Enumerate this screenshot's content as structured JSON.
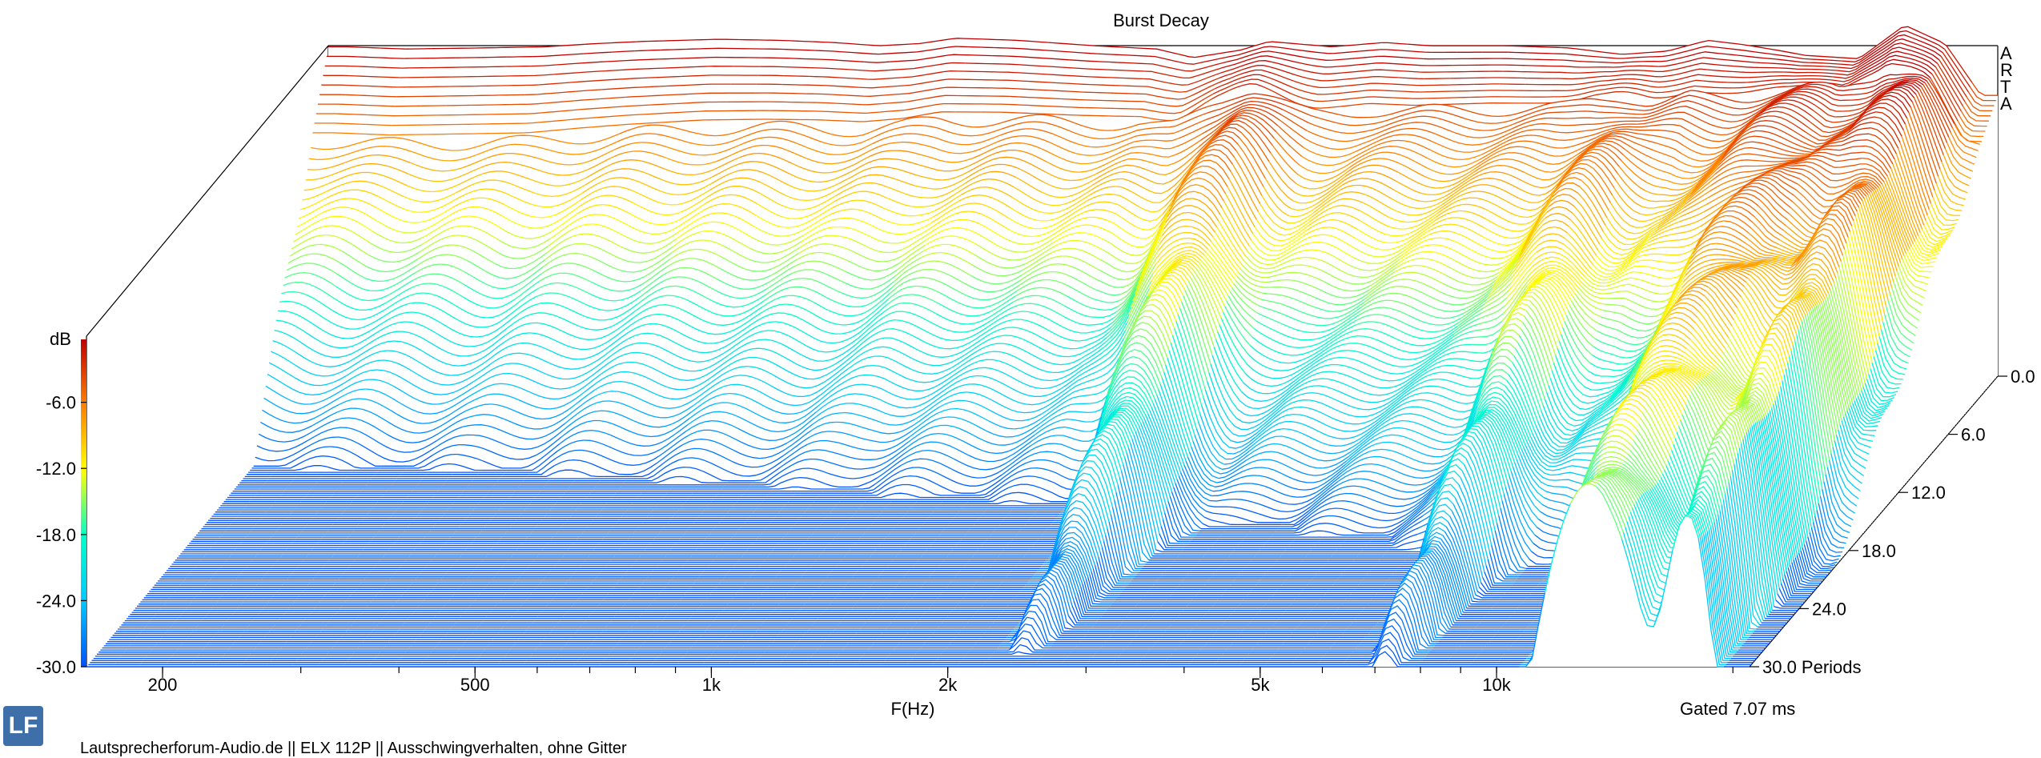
{
  "chart_data": {
    "type": "waterfall",
    "title": "Burst Decay",
    "xlabel": "F(Hz)",
    "zlabel": "dB",
    "x_scale": "log",
    "xlim": [
      160,
      21000
    ],
    "x_ticks": [
      {
        "value": 200,
        "label": "200"
      },
      {
        "value": 500,
        "label": "500"
      },
      {
        "value": 1000,
        "label": "1k"
      },
      {
        "value": 2000,
        "label": "2k"
      },
      {
        "value": 5000,
        "label": "5k"
      },
      {
        "value": 10000,
        "label": "10k"
      }
    ],
    "z_ticks": [
      "-6.0",
      "-12.0",
      "-18.0",
      "-24.0",
      "-30.0"
    ],
    "zlim": [
      -30,
      0
    ],
    "depth_ticks": [
      "0.0",
      "6.0",
      "12.0",
      "18.0",
      "24.0",
      "30.0 Periods"
    ],
    "depth_range": [
      0,
      30
    ],
    "vendor_label": [
      "A",
      "R",
      "T",
      "A"
    ],
    "gated_label": "Gated 7.07 ms",
    "colormap": [
      "#0050ff",
      "#00c8ff",
      "#00ffc8",
      "#ffff00",
      "#ff8000",
      "#c00000"
    ],
    "grid": false,
    "initial_response": {
      "frequency_hz": [
        170,
        200,
        250,
        300,
        350,
        400,
        500,
        600,
        700,
        800,
        900,
        1000,
        1200,
        1500,
        1800,
        2000,
        2300,
        2500,
        3000,
        3500,
        4000,
        5000,
        6000,
        7000,
        8000,
        9000,
        10000,
        11000,
        12000,
        14000,
        16000,
        18000,
        20000
      ],
      "level_db": [
        0.5,
        0.3,
        0.4,
        0.5,
        0.8,
        1.0,
        1.2,
        1.1,
        0.9,
        0.6,
        0.8,
        1.3,
        1.1,
        0.6,
        0.3,
        -0.5,
        0.2,
        1.0,
        0.5,
        0.9,
        0.6,
        0.6,
        0.4,
        -0.2,
        0.1,
        1.1,
        0.7,
        0.2,
        -0.3,
        -0.6,
        2.5,
        0.8,
        -4.0
      ]
    }
  },
  "footer": {
    "text": "Lautsprecherforum-Audio.de  ||  ELX 112P  ||  Ausschwingverhalten, ohne Gitter",
    "logo": "LF"
  }
}
